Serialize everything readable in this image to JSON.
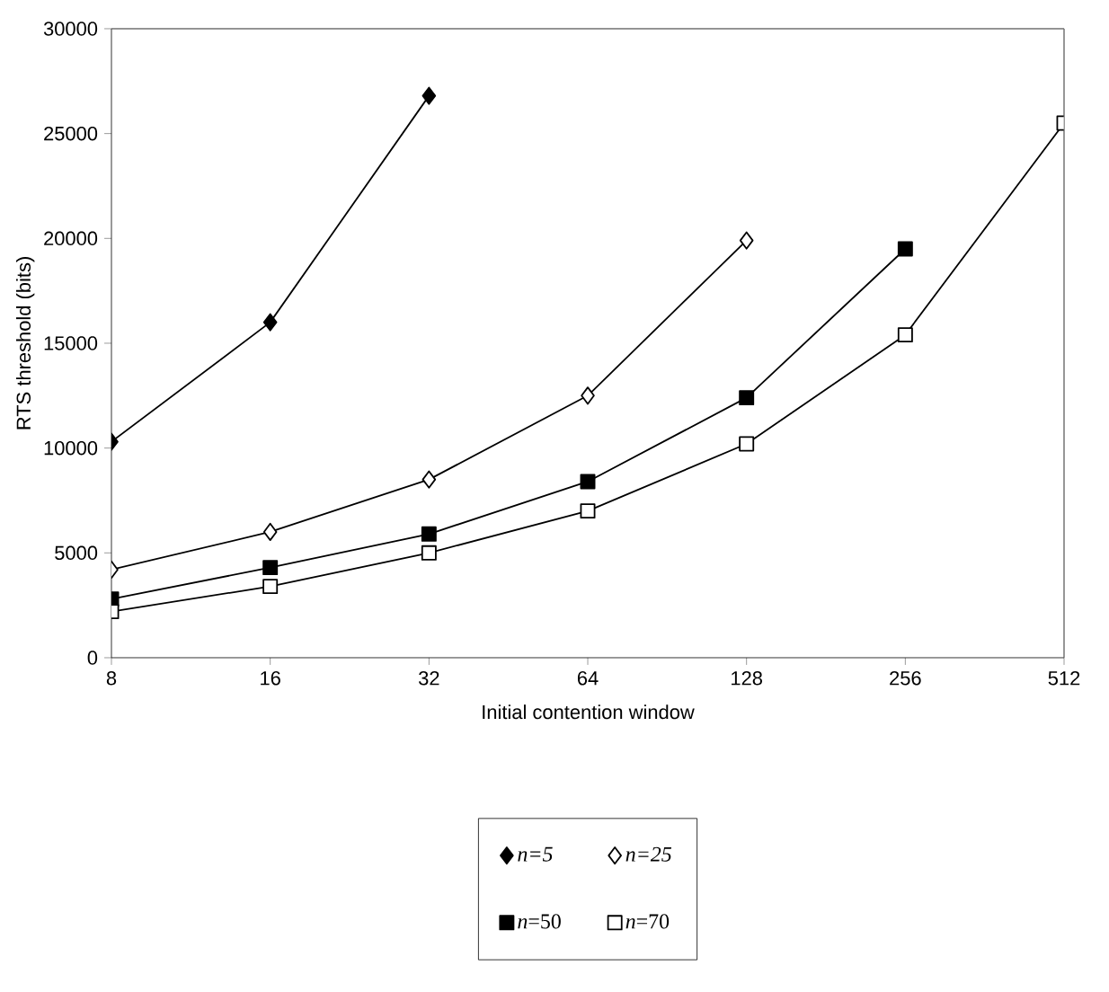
{
  "chart_data": {
    "type": "line",
    "xlabel": "Initial contention window",
    "ylabel": "RTS threshold (bits)",
    "categories": [
      "8",
      "16",
      "32",
      "64",
      "128",
      "256",
      "512"
    ],
    "ylim": [
      0,
      30000
    ],
    "yticks": [
      0,
      5000,
      10000,
      15000,
      20000,
      25000,
      30000
    ],
    "grid": false,
    "legend": "bottom",
    "line_style": "solid",
    "series": [
      {
        "name": "*n=5*",
        "color": "#000000",
        "marker": "diamond",
        "values": [
          10300,
          16000,
          26800,
          null,
          null,
          null,
          null
        ]
      },
      {
        "name": "*n=25*",
        "color": "#ffffff",
        "marker": "diamond",
        "values": [
          4200,
          6000,
          8500,
          12500,
          19900,
          null,
          null
        ]
      },
      {
        "name": "*n*=50",
        "color": "#000000",
        "marker": "square",
        "values": [
          2800,
          4300,
          5900,
          8400,
          12400,
          19500,
          null
        ]
      },
      {
        "name": "*n*=70",
        "color": "#ffffff",
        "marker": "square",
        "values": [
          2200,
          3400,
          5000,
          7000,
          10200,
          15400,
          25500
        ]
      }
    ]
  }
}
